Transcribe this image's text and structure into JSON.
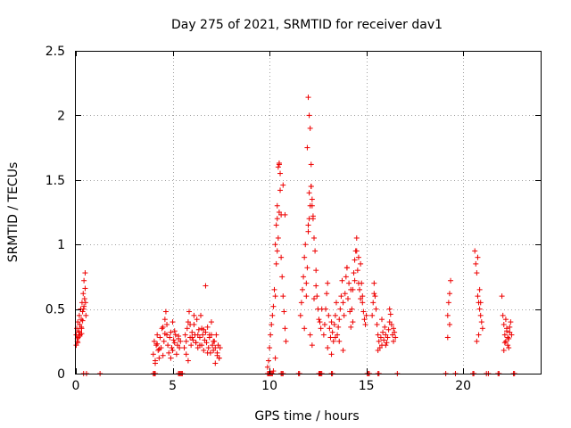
{
  "chart_data": {
    "type": "scatter",
    "title": "Day 275 of 2021, SRMTID for receiver dav1",
    "xlabel": "GPS time / hours",
    "ylabel": "SRMTID / TECUs",
    "xlim": [
      0,
      24
    ],
    "ylim": [
      0,
      2.5
    ],
    "xticks": [
      0,
      5,
      10,
      15,
      20
    ],
    "yticks": [
      0,
      0.5,
      1,
      1.5,
      2,
      2.5
    ],
    "xtick_labels": [
      "0",
      "5",
      "10",
      "15",
      "20"
    ],
    "ytick_labels": [
      "0",
      "0.5",
      "1",
      "1.5",
      "2",
      "2.5"
    ],
    "grid": true,
    "marker": "+",
    "color": "#ee0000",
    "series": [
      {
        "name": "dav1",
        "x": [
          0.02,
          0.05,
          0.08,
          0.1,
          0.12,
          0.15,
          0.18,
          0.2,
          0.22,
          0.25,
          0.28,
          0.3,
          0.32,
          0.35,
          0.38,
          0.4,
          0.42,
          0.45,
          0.48,
          0.5,
          0.52,
          0.02,
          0.08,
          0.15,
          0.2,
          0.28,
          0.35,
          0.42,
          0.48,
          0.1,
          0.3,
          4.0,
          4.05,
          4.1,
          4.15,
          4.2,
          4.25,
          4.3,
          4.35,
          4.4,
          4.45,
          4.5,
          4.55,
          4.6,
          4.65,
          4.7,
          4.75,
          4.8,
          4.85,
          4.9,
          4.95,
          5.0,
          5.05,
          5.1,
          5.15,
          5.2,
          5.25,
          5.3,
          5.35,
          5.4,
          4.1,
          4.3,
          4.5,
          4.7,
          4.9,
          5.1,
          5.3,
          4.2,
          4.6,
          5.0,
          5.6,
          5.65,
          5.7,
          5.75,
          5.8,
          5.85,
          5.9,
          5.95,
          6.0,
          6.05,
          6.1,
          6.15,
          6.2,
          6.25,
          6.3,
          6.35,
          6.4,
          6.45,
          6.5,
          6.55,
          6.6,
          6.65,
          6.7,
          6.75,
          6.8,
          6.85,
          6.9,
          6.95,
          7.0,
          7.05,
          7.1,
          7.15,
          7.2,
          7.25,
          7.3,
          7.35,
          7.4,
          7.45,
          5.7,
          5.9,
          6.1,
          6.3,
          6.5,
          6.7,
          6.9,
          7.1,
          7.3,
          5.8,
          6.2,
          6.6,
          7.0,
          7.4,
          6.0,
          6.4,
          6.8,
          7.2,
          9.9,
          9.95,
          10.0,
          10.05,
          10.1,
          10.15,
          10.2,
          10.25,
          10.3,
          10.35,
          10.4,
          10.45,
          10.5,
          10.55,
          10.6,
          10.65,
          10.7,
          10.75,
          10.8,
          10.85,
          10.3,
          10.35,
          10.4,
          10.45,
          10.5,
          10.55,
          10.6,
          10.4,
          10.5,
          10.2,
          10.3,
          10.7,
          10.8,
          11.6,
          11.65,
          11.7,
          11.75,
          11.8,
          11.85,
          11.9,
          11.95,
          12.0,
          12.05,
          12.1,
          12.15,
          12.2,
          12.25,
          12.3,
          12.35,
          12.4,
          12.45,
          12.5,
          12.55,
          12.6,
          12.65,
          12.7,
          11.95,
          12.0,
          12.05,
          12.1,
          12.15,
          12.2,
          12.25,
          11.9,
          12.0,
          12.1,
          12.2,
          12.3,
          12.4,
          11.8,
          12.15,
          12.05,
          12.8,
          12.85,
          12.9,
          12.95,
          13.0,
          13.05,
          13.1,
          13.15,
          13.2,
          13.25,
          13.3,
          13.35,
          13.4,
          13.45,
          13.5,
          13.55,
          13.6,
          13.65,
          13.7,
          13.75,
          13.8,
          13.85,
          13.9,
          13.95,
          14.0,
          14.05,
          14.1,
          14.15,
          14.2,
          14.25,
          14.3,
          14.35,
          14.4,
          14.45,
          14.5,
          14.55,
          14.6,
          14.65,
          14.7,
          14.75,
          14.8,
          14.85,
          14.9,
          14.95,
          15.0,
          13.0,
          13.4,
          13.8,
          14.2,
          14.6,
          13.2,
          13.6,
          14.0,
          14.4,
          14.8,
          14.3,
          14.5,
          14.7,
          15.3,
          15.35,
          15.4,
          15.45,
          15.5,
          15.55,
          15.6,
          15.65,
          15.7,
          15.75,
          15.8,
          15.85,
          15.9,
          15.95,
          16.0,
          16.05,
          16.1,
          16.15,
          16.2,
          16.25,
          16.3,
          16.35,
          16.4,
          16.45,
          16.5,
          15.4,
          15.6,
          15.8,
          16.0,
          16.2,
          16.4,
          19.2,
          19.25,
          19.3,
          19.35,
          19.2,
          19.3,
          20.6,
          20.65,
          20.7,
          20.75,
          20.8,
          20.85,
          20.9,
          20.95,
          21.0,
          20.7,
          20.8,
          20.9,
          20.75,
          20.85,
          22.0,
          22.05,
          22.1,
          22.15,
          22.2,
          22.25,
          22.3,
          22.35,
          22.4,
          22.45,
          22.5,
          22.1,
          22.2,
          22.3,
          22.4,
          22.15,
          22.25,
          22.35,
          0.4,
          0.55,
          1.25,
          4.0,
          4.05,
          4.1,
          5.3,
          5.35,
          5.4,
          5.45,
          5.5,
          9.9,
          9.95,
          10.0,
          10.05,
          10.1,
          10.15,
          10.6,
          10.65,
          10.7,
          11.5,
          11.55,
          12.55,
          12.6,
          12.65,
          12.7,
          13.2,
          13.25,
          15.05,
          15.1,
          15.15,
          15.6,
          15.65,
          16.6,
          19.1,
          19.6,
          20.5,
          20.55,
          21.2,
          21.3,
          21.8,
          21.85,
          22.6,
          22.65
        ],
        "y": [
          0.3,
          0.35,
          0.25,
          0.4,
          0.28,
          0.32,
          0.45,
          0.38,
          0.3,
          0.5,
          0.42,
          0.35,
          0.55,
          0.48,
          0.62,
          0.5,
          0.72,
          0.58,
          0.78,
          0.55,
          0.45,
          0.22,
          0.27,
          0.33,
          0.29,
          0.36,
          0.41,
          0.52,
          0.66,
          0.24,
          0.31,
          0.15,
          0.25,
          0.1,
          0.22,
          0.3,
          0.18,
          0.12,
          0.28,
          0.2,
          0.35,
          0.14,
          0.25,
          0.42,
          0.48,
          0.3,
          0.22,
          0.16,
          0.28,
          0.32,
          0.2,
          0.18,
          0.26,
          0.24,
          0.3,
          0.15,
          0.22,
          0.27,
          0.2,
          0.25,
          0.08,
          0.19,
          0.36,
          0.38,
          0.12,
          0.33,
          0.29,
          0.23,
          0.31,
          0.4,
          0.2,
          0.3,
          0.25,
          0.35,
          0.4,
          0.48,
          0.28,
          0.22,
          0.32,
          0.26,
          0.38,
          0.3,
          0.24,
          0.42,
          0.2,
          0.34,
          0.28,
          0.45,
          0.22,
          0.3,
          0.18,
          0.26,
          0.32,
          0.24,
          0.36,
          0.2,
          0.28,
          0.16,
          0.3,
          0.22,
          0.18,
          0.25,
          0.2,
          0.3,
          0.14,
          0.22,
          0.12,
          0.2,
          0.15,
          0.38,
          0.45,
          0.3,
          0.35,
          0.68,
          0.3,
          0.25,
          0.16,
          0.1,
          0.24,
          0.34,
          0.4,
          0.12,
          0.28,
          0.22,
          0.16,
          0.08,
          0.05,
          0.1,
          0.2,
          0.3,
          0.38,
          0.45,
          0.52,
          0.65,
          0.6,
          0.85,
          0.95,
          1.05,
          1.25,
          1.42,
          0.9,
          0.75,
          0.6,
          0.48,
          0.35,
          0.25,
          1.0,
          1.15,
          1.3,
          1.6,
          1.63,
          1.55,
          1.23,
          1.2,
          1.62,
          0.02,
          0.12,
          1.46,
          1.23,
          0.45,
          0.55,
          0.65,
          0.75,
          0.9,
          1.0,
          0.6,
          0.82,
          1.1,
          1.2,
          1.3,
          1.45,
          1.35,
          1.2,
          1.05,
          0.95,
          0.8,
          0.6,
          0.5,
          0.42,
          0.4,
          0.35,
          0.5,
          1.75,
          2.14,
          2.0,
          1.9,
          1.45,
          1.3,
          1.22,
          0.7,
          1.15,
          0.3,
          0.22,
          0.58,
          0.68,
          0.35,
          1.62,
          1.4,
          0.3,
          0.38,
          0.5,
          0.62,
          0.7,
          0.45,
          0.35,
          0.28,
          0.4,
          0.32,
          0.25,
          0.38,
          0.45,
          0.55,
          0.3,
          0.36,
          0.42,
          0.5,
          0.6,
          0.72,
          0.55,
          0.45,
          0.62,
          0.75,
          0.82,
          0.58,
          0.7,
          0.48,
          0.36,
          0.5,
          0.65,
          0.78,
          0.88,
          0.95,
          1.05,
          0.8,
          0.7,
          0.65,
          0.58,
          0.7,
          0.55,
          0.48,
          0.42,
          0.38,
          0.45,
          0.2,
          0.28,
          0.18,
          0.65,
          0.9,
          0.15,
          0.25,
          0.82,
          0.72,
          0.6,
          0.4,
          0.95,
          0.85,
          0.45,
          0.55,
          0.7,
          0.6,
          0.5,
          0.38,
          0.3,
          0.25,
          0.2,
          0.28,
          0.22,
          0.32,
          0.26,
          0.36,
          0.3,
          0.24,
          0.28,
          0.34,
          0.4,
          0.46,
          0.38,
          0.3,
          0.25,
          0.32,
          0.28,
          0.62,
          0.18,
          0.42,
          0.22,
          0.5,
          0.35,
          0.45,
          0.55,
          0.62,
          0.72,
          0.28,
          0.38,
          0.95,
          0.85,
          0.78,
          0.6,
          0.55,
          0.5,
          0.45,
          0.4,
          0.35,
          0.25,
          0.3,
          0.55,
          0.9,
          0.65,
          0.6,
          0.45,
          0.38,
          0.3,
          0.25,
          0.35,
          0.28,
          0.2,
          0.32,
          0.4,
          0.3,
          0.18,
          0.42,
          0.22,
          0.36,
          0.24,
          0.33,
          0.27,
          0.0,
          0.0,
          0.0,
          0.0,
          0.0,
          0.0,
          0.0,
          0.0,
          0.0,
          0.0,
          0.0,
          0.0,
          0.0,
          0.0,
          0.0,
          0.0,
          0.0,
          0.0,
          0.0,
          0.0,
          0.0,
          0.0,
          0.0,
          0.0,
          0.0,
          0.0,
          0.0,
          0.0,
          0.0,
          0.0,
          0.0,
          0.0,
          0.0,
          0.0,
          0.0,
          0.0,
          0.0,
          0.0,
          0.0,
          0.0,
          0.0,
          0.0,
          0.0,
          0.0
        ]
      }
    ]
  }
}
